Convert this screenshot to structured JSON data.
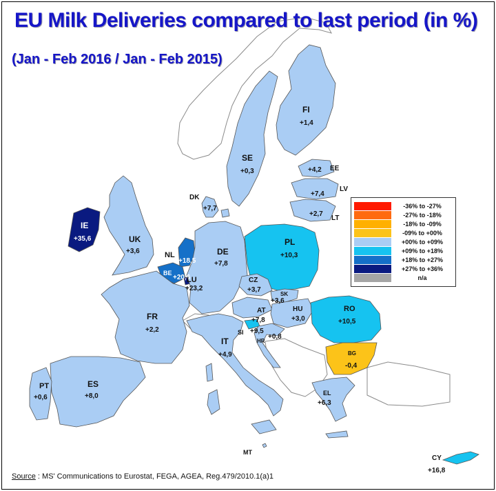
{
  "title": "EU Milk Deliveries compared to last period (in %)",
  "subtitle": "(Jan - Feb 2016 / Jan - Feb 2015)",
  "legend": [
    {
      "range": "-36% to -27%",
      "color": "#ff1a00"
    },
    {
      "range": "-27% to -18%",
      "color": "#ff6a10"
    },
    {
      "range": "-18% to -09%",
      "color": "#ffb000"
    },
    {
      "range": "-09% to +00%",
      "color": "#fcc319"
    },
    {
      "range": "+00% to +09%",
      "color": "#aacdf4"
    },
    {
      "range": "+09% to +18%",
      "color": "#16c3f0"
    },
    {
      "range": "+18% to +27%",
      "color": "#1570c8"
    },
    {
      "range": "+27% to +36%",
      "color": "#0a1a80"
    },
    {
      "range": "n/a",
      "color": "#a5a5a5"
    }
  ],
  "countries": [
    {
      "code": "FI",
      "value": "+1,4"
    },
    {
      "code": "SE",
      "value": "+0,3"
    },
    {
      "code": "EE",
      "value": "+4,2"
    },
    {
      "code": "LV",
      "value": "+7,4"
    },
    {
      "code": "LT",
      "value": "+2,7"
    },
    {
      "code": "DK",
      "value": "+7,7"
    },
    {
      "code": "IE",
      "value": "+35,6"
    },
    {
      "code": "UK",
      "value": "+3,6"
    },
    {
      "code": "NL",
      "value": "+18,5"
    },
    {
      "code": "BE",
      "value": "+20,6"
    },
    {
      "code": "LU",
      "value": "+23,2"
    },
    {
      "code": "DE",
      "value": "+7,8"
    },
    {
      "code": "PL",
      "value": "+10,3"
    },
    {
      "code": "CZ",
      "value": "+3,7"
    },
    {
      "code": "SK",
      "value": "+3,6"
    },
    {
      "code": "AT",
      "value": "+7,8"
    },
    {
      "code": "HU",
      "value": "+3,0"
    },
    {
      "code": "SI",
      "value": "+9,5"
    },
    {
      "code": "HR",
      "value": "+0,8"
    },
    {
      "code": "RO",
      "value": "+10,5"
    },
    {
      "code": "BG",
      "value": "-0,4"
    },
    {
      "code": "FR",
      "value": "+2,2"
    },
    {
      "code": "IT",
      "value": "+4,9"
    },
    {
      "code": "ES",
      "value": "+8,0"
    },
    {
      "code": "PT",
      "value": "+0,6"
    },
    {
      "code": "EL",
      "value": "+6,3"
    },
    {
      "code": "MT",
      "value": ""
    },
    {
      "code": "CY",
      "value": "+16,8"
    }
  ],
  "source_prefix": "Source",
  "source_text": " : MS' Communications to Eurostat, FEGA, AGEA, Reg.479/2010.1(a)1",
  "colors": {
    "title": "#1616c8",
    "light_blue": "#aacdf4",
    "cyan": "#16c3f0",
    "mid_blue": "#1570c8",
    "dark_blue": "#0a1a80",
    "yellow": "#fcc319",
    "non_eu": "#ffffff"
  }
}
